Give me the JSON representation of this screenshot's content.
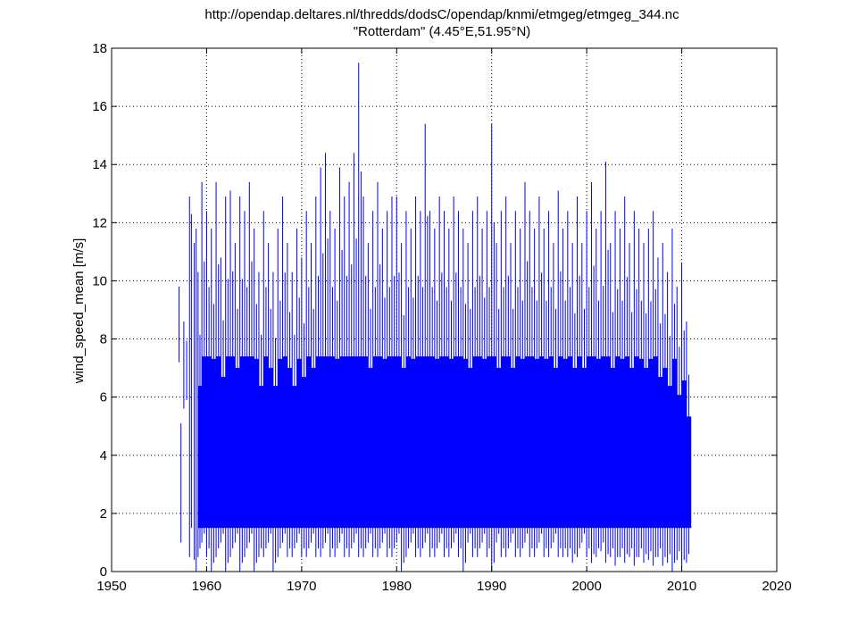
{
  "chart_data": {
    "type": "line",
    "title": "http://opendap.deltares.nl/thredds/dodsC/opendap/knmi/etmgeg/etmgeg_344.nc",
    "subtitle": "\"Rotterdam\" (4.45°E,51.95°N)",
    "xlabel": "",
    "ylabel": "wind_speed_mean [m/s]",
    "xlim": [
      1950,
      2020
    ],
    "ylim": [
      0,
      18
    ],
    "xticks": [
      1950,
      1960,
      1970,
      1980,
      1990,
      2000,
      2010,
      2020
    ],
    "yticks": [
      0,
      2,
      4,
      6,
      8,
      10,
      12,
      14,
      16,
      18
    ],
    "grid": true,
    "line_color": "#0000ff",
    "series": [
      {
        "x": [
          1957.1,
          1957.3,
          1957.6,
          1958.2,
          1958.4,
          1958.7,
          1958.9,
          1959.1,
          1959.5,
          1960.0,
          1960.5,
          1961.0,
          1961.5,
          1962.0,
          1962.5,
          1963.0,
          1963.5,
          1964.0,
          1964.5,
          1965.0,
          1965.5,
          1966.0,
          1966.5,
          1967.0,
          1967.5,
          1968.0,
          1968.5,
          1969.0,
          1969.5,
          1970.0,
          1970.5,
          1971.0,
          1971.5,
          1972.0,
          1972.5,
          1973.0,
          1973.5,
          1974.0,
          1974.5,
          1975.0,
          1975.5,
          1976.0,
          1976.5,
          1977.0,
          1977.5,
          1978.0,
          1978.5,
          1979.0,
          1979.5,
          1980.0,
          1980.5,
          1981.0,
          1981.5,
          1982.0,
          1982.5,
          1983.0,
          1983.5,
          1984.0,
          1984.5,
          1985.0,
          1985.5,
          1986.0,
          1986.5,
          1987.0,
          1987.5,
          1988.0,
          1988.5,
          1989.0,
          1989.5,
          1990.0,
          1990.5,
          1991.0,
          1991.5,
          1992.0,
          1992.5,
          1993.0,
          1993.5,
          1994.0,
          1994.5,
          1995.0,
          1995.5,
          1996.0,
          1996.5,
          1997.0,
          1997.5,
          1998.0,
          1998.5,
          1999.0,
          1999.5,
          2000.0,
          2000.5,
          2001.0,
          2001.5,
          2002.0,
          2002.5,
          2003.0,
          2003.5,
          2004.0,
          2004.5,
          2005.0,
          2005.5,
          2006.0,
          2006.5,
          2007.0,
          2007.5,
          2008.0,
          2008.5,
          2009.0,
          2009.5,
          2010.0,
          2010.5
        ],
        "ymin": [
          7.2,
          1.0,
          5.6,
          0.5,
          1.5,
          0.4,
          0.0,
          0.5,
          1.0,
          0.5,
          0.0,
          0.5,
          1.0,
          0.0,
          0.5,
          1.0,
          0.0,
          0.5,
          1.0,
          0.0,
          0.5,
          0.5,
          1.0,
          0.0,
          0.5,
          1.0,
          0.5,
          0.5,
          1.0,
          0.5,
          0.5,
          1.0,
          0.5,
          0.5,
          1.0,
          0.5,
          0.5,
          1.0,
          0.5,
          0.5,
          1.0,
          0.5,
          0.5,
          1.0,
          0.5,
          0.5,
          1.0,
          0.5,
          0.5,
          1.0,
          0.0,
          0.5,
          1.0,
          0.5,
          0.5,
          1.0,
          0.5,
          0.5,
          1.0,
          0.5,
          0.5,
          1.0,
          0.5,
          0.0,
          1.0,
          0.5,
          0.5,
          1.0,
          0.5,
          0.0,
          1.0,
          0.5,
          0.5,
          1.0,
          0.5,
          0.5,
          1.0,
          0.5,
          0.5,
          1.0,
          0.5,
          0.5,
          1.0,
          0.5,
          0.5,
          0.5,
          0.3,
          0.5,
          1.0,
          0.5,
          0.3,
          0.5,
          0.7,
          0.3,
          0.5,
          0.2,
          0.5,
          0.3,
          0.5,
          0.2,
          0.5,
          0.3,
          0.4,
          0.2,
          0.5,
          0.2,
          0.3,
          0.0,
          0.4,
          0.1,
          0.3
        ],
        "ymax": [
          9.8,
          5.1,
          8.6,
          12.9,
          12.3,
          11.3,
          11.8,
          10.3,
          13.4,
          12.4,
          11.8,
          13.4,
          10.8,
          12.9,
          13.1,
          11.3,
          12.9,
          12.4,
          13.4,
          11.8,
          10.3,
          12.4,
          11.3,
          10.3,
          11.8,
          12.9,
          11.3,
          10.3,
          11.8,
          10.8,
          12.4,
          11.3,
          12.9,
          13.9,
          14.4,
          12.4,
          11.8,
          13.9,
          12.9,
          13.4,
          14.4,
          17.5,
          12.9,
          11.3,
          12.4,
          13.4,
          11.8,
          12.4,
          12.9,
          12.9,
          11.3,
          12.4,
          11.8,
          12.9,
          12.4,
          15.4,
          12.4,
          11.8,
          12.9,
          12.4,
          11.8,
          12.9,
          12.4,
          11.8,
          11.3,
          12.4,
          12.9,
          11.8,
          12.4,
          15.4,
          11.3,
          12.4,
          12.9,
          11.3,
          12.4,
          11.8,
          13.4,
          12.4,
          11.8,
          12.9,
          11.8,
          12.4,
          11.3,
          13.1,
          11.8,
          12.4,
          11.3,
          12.9,
          11.3,
          12.4,
          13.4,
          11.8,
          12.4,
          14.1,
          11.3,
          12.4,
          11.8,
          12.9,
          11.3,
          12.4,
          11.8,
          11.3,
          11.8,
          12.4,
          10.8,
          11.3,
          10.3,
          11.8,
          9.8,
          10.6,
          8.6
        ],
        "name": ""
      }
    ]
  }
}
